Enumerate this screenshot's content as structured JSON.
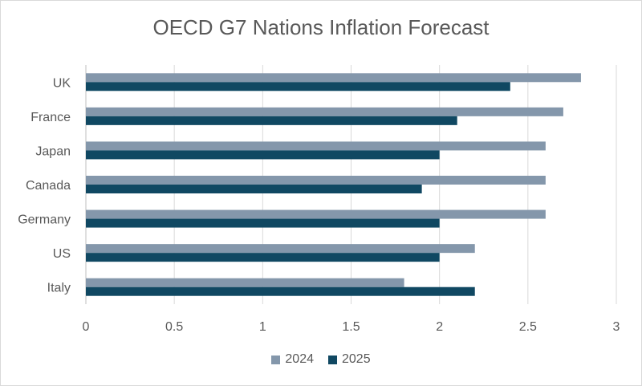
{
  "chart_data": {
    "type": "bar",
    "orientation": "horizontal",
    "title": "OECD G7 Nations Inflation Forecast",
    "categories": [
      "UK",
      "France",
      "Japan",
      "Canada",
      "Germany",
      "US",
      "Italy"
    ],
    "series": [
      {
        "name": "2024",
        "color": "#8497ab",
        "values": [
          2.8,
          2.7,
          2.6,
          2.6,
          2.6,
          2.2,
          1.8
        ]
      },
      {
        "name": "2025",
        "color": "#104862",
        "values": [
          2.4,
          2.1,
          2.0,
          1.9,
          2.0,
          2.0,
          2.2
        ]
      }
    ],
    "xlim": [
      0,
      3
    ],
    "xticks": [
      "0",
      "0.5",
      "1",
      "1.5",
      "2",
      "2.5",
      "3"
    ],
    "grid": "vertical",
    "legend": "bottom"
  }
}
